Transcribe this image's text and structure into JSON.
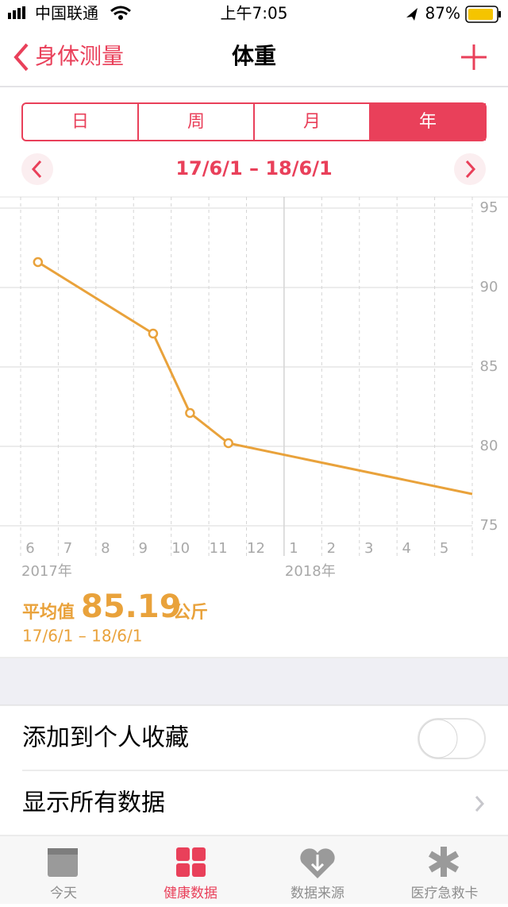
{
  "status_bar": {
    "carrier": "中国联通",
    "time": "上午7:05",
    "battery": "87%"
  },
  "nav": {
    "back": "身体测量",
    "title": "体重"
  },
  "segments": {
    "items": [
      "日",
      "周",
      "月",
      "年"
    ],
    "selected": 3
  },
  "date_range": "17/6/1 – 18/6/1",
  "chart_data": {
    "type": "line",
    "categories": [
      "6",
      "7",
      "8",
      "9",
      "10",
      "11",
      "12",
      "1",
      "2",
      "3",
      "4",
      "5"
    ],
    "year_labels": [
      "2017年",
      "2018年"
    ],
    "xlim": [
      0,
      12
    ],
    "ylim": [
      75,
      95
    ],
    "yticks": [
      75,
      80,
      85,
      90,
      95
    ],
    "grid": true,
    "series": [
      {
        "color": "#e9a23b",
        "x": [
          0.46,
          3.52,
          4.5,
          5.52,
          12
        ],
        "values": [
          91.6,
          87.1,
          82.1,
          80.2,
          77.0
        ],
        "markers": [
          true,
          true,
          true,
          true,
          false
        ]
      }
    ]
  },
  "average": {
    "label": "平均值",
    "value": "85.19",
    "unit": "公斤",
    "range": "17/6/1 – 18/6/1"
  },
  "rows": [
    "添加到个人收藏",
    "显示所有数据"
  ],
  "tabs": {
    "items": [
      "今天",
      "健康数据",
      "数据来源",
      "医疗急救卡"
    ],
    "selected": 1
  }
}
